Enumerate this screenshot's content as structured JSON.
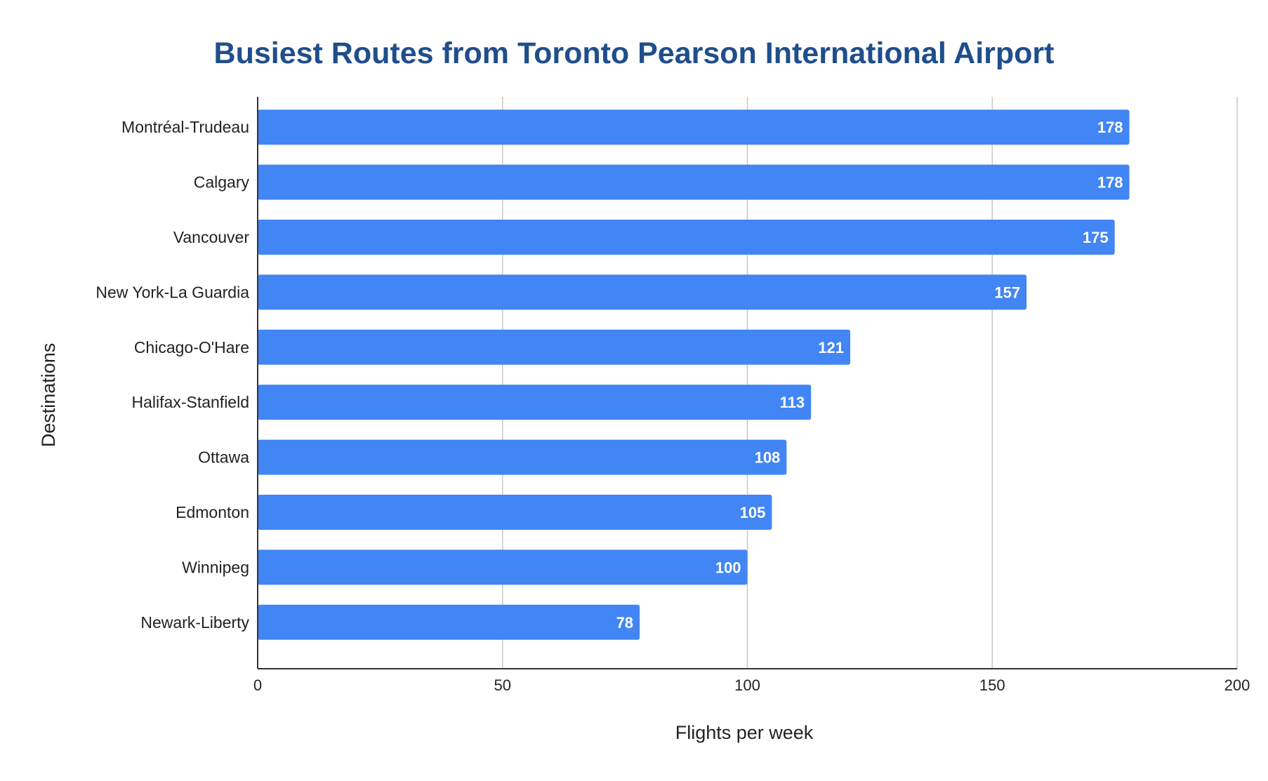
{
  "chart_data": {
    "type": "bar",
    "orientation": "horizontal",
    "title": "Busiest Routes from Toronto Pearson International Airport",
    "xlabel": "Flights per week",
    "ylabel": "Destinations",
    "categories": [
      "Montréal-Trudeau",
      "Calgary",
      "Vancouver",
      "New York-La Guardia",
      "Chicago-O'Hare",
      "Halifax-Stanfield",
      "Ottawa",
      "Edmonton",
      "Winnipeg",
      "Newark-Liberty"
    ],
    "values": [
      178,
      178,
      175,
      157,
      121,
      113,
      108,
      105,
      100,
      78
    ],
    "data_labels": [
      "178",
      "178",
      "175",
      "157",
      "121",
      "113",
      "108",
      "105",
      "100",
      "78"
    ],
    "xlim": [
      0,
      200
    ],
    "x_ticks": [
      0,
      50,
      100,
      150,
      200
    ],
    "x_tick_labels": [
      "0",
      "50",
      "100",
      "150",
      "200"
    ],
    "grid": "vertical",
    "legend": "none"
  },
  "colors": {
    "bar": "#4285f4",
    "title": "#1f4e8c",
    "grid": "#c8c8c8",
    "axis": "#333333",
    "data_label": "#ffffff"
  }
}
